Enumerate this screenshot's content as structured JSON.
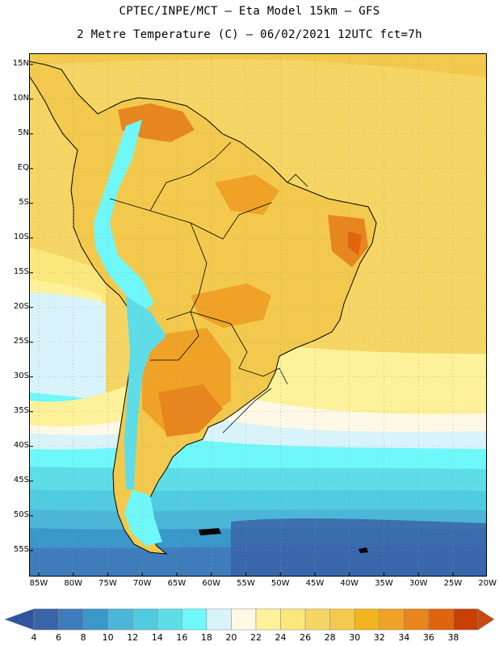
{
  "header": {
    "line1": "CPTEC/INPE/MCT –  Eta Model 15km – GFS",
    "line2": "2 Metre Temperature (C) – 06/02/2021 12UTC fct=7h"
  },
  "map": {
    "lat_labels": [
      "15N",
      "10N",
      "5N",
      "EQ",
      "5S",
      "10S",
      "15S",
      "20S",
      "25S",
      "30S",
      "35S",
      "40S",
      "45S",
      "50S",
      "55S"
    ],
    "lon_labels": [
      "85W",
      "80W",
      "75W",
      "70W",
      "65W",
      "60W",
      "55W",
      "50W",
      "45W",
      "40W",
      "35W",
      "30W",
      "25W",
      "20W"
    ],
    "lat_values": [
      15,
      10,
      5,
      0,
      -5,
      -10,
      -15,
      -20,
      -25,
      -30,
      -35,
      -40,
      -45,
      -50,
      -55
    ],
    "lon_values": [
      -85,
      -80,
      -75,
      -70,
      -65,
      -60,
      -55,
      -50,
      -45,
      -40,
      -35,
      -30,
      -25,
      -20
    ]
  },
  "colorbar": {
    "labels": [
      "4",
      "6",
      "8",
      "10",
      "12",
      "14",
      "16",
      "18",
      "20",
      "22",
      "24",
      "26",
      "28",
      "30",
      "32",
      "34",
      "36",
      "38"
    ],
    "colors": [
      "#3a64a8",
      "#3f7cbb",
      "#3a97c9",
      "#4cb6d8",
      "#51cbe0",
      "#5edde9",
      "#6ff8fa",
      "#d9f3fa",
      "#fef8e6",
      "#fdf29a",
      "#fbe87d",
      "#f5d664",
      "#f2c94c",
      "#f2b41f",
      "#f0a227",
      "#e7851e",
      "#e0640e",
      "#c94005"
    ],
    "under_color": "#2f55a0",
    "over_color": "#c44a10"
  }
}
